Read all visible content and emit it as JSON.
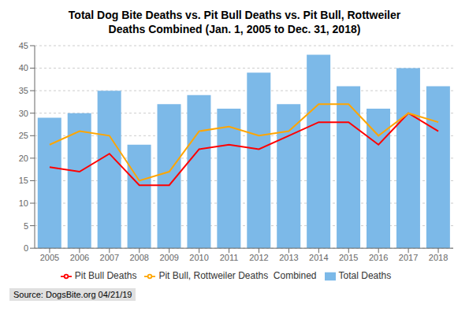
{
  "chart_data": {
    "type": "bar",
    "title": "Total Dog Bite Deaths vs. Pit Bull Deaths vs. Pit Bull, Rottweiler\nDeaths Combined (Jan. 1, 2005 to Dec. 31, 2018)",
    "categories": [
      "2005",
      "2006",
      "2007",
      "2008",
      "2009",
      "2010",
      "2011",
      "2012",
      "2013",
      "2014",
      "2015",
      "2016",
      "2017",
      "2018"
    ],
    "series": [
      {
        "name": "Total Deaths",
        "type": "bar",
        "color": "#7CB9E8",
        "values": [
          29,
          30,
          35,
          23,
          32,
          34,
          31,
          39,
          32,
          43,
          36,
          31,
          40,
          36
        ]
      },
      {
        "name": "Pit Bull Deaths",
        "type": "line",
        "color": "#FF0000",
        "values": [
          18,
          17,
          21,
          14,
          14,
          22,
          23,
          22,
          25,
          28,
          28,
          23,
          30,
          26
        ]
      },
      {
        "name": "Pit Bull, Rottweiler Deaths  Combined",
        "type": "line",
        "color": "#FFA500",
        "values": [
          23,
          26,
          25,
          15,
          17,
          26,
          27,
          25,
          26,
          32,
          32,
          25,
          30,
          28
        ]
      }
    ],
    "ylim": [
      0,
      45
    ],
    "yticks": [
      0,
      5,
      10,
      15,
      20,
      25,
      30,
      35,
      40,
      45
    ],
    "grid": true,
    "legend": "bottom",
    "annotations": [
      "Source: DogsBite.org 04/21/19"
    ]
  }
}
